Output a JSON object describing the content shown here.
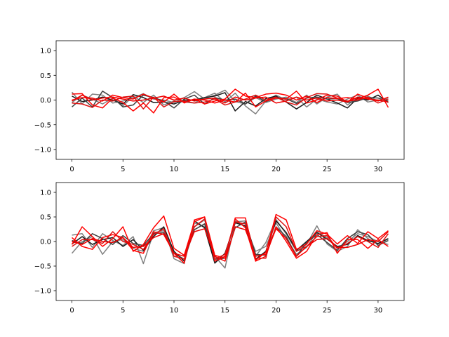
{
  "chart_data": [
    {
      "type": "line",
      "x": [
        0,
        1,
        2,
        3,
        4,
        5,
        6,
        7,
        8,
        9,
        10,
        11,
        12,
        13,
        14,
        15,
        16,
        17,
        18,
        19,
        20,
        21,
        22,
        23,
        24,
        25,
        26,
        27,
        28,
        29,
        30,
        31
      ],
      "xticks": [
        0,
        5,
        10,
        15,
        20,
        25,
        30
      ],
      "yticks": [
        -1.0,
        -0.5,
        0.0,
        0.5,
        1.0
      ],
      "xlim": [
        -1.55,
        32.55
      ],
      "ylim": [
        -1.2,
        1.2
      ],
      "series": [
        {
          "color": "#808080",
          "values": [
            0.16,
            -0.08,
            0.12,
            0.1,
            -0.06,
            -0.02,
            0.04,
            0.13,
            0.02,
            0.0,
            -0.05,
            0.05,
            0.17,
            0.02,
            0.1,
            0.2,
            -0.03,
            -0.08,
            0.05,
            -0.05,
            0.02,
            0.06,
            -0.05,
            0.1,
            -0.08,
            0.06,
            0.12,
            -0.1,
            0.05,
            0.08,
            -0.02,
            0.05
          ]
        },
        {
          "color": "#808080",
          "values": [
            -0.05,
            0.1,
            0.02,
            -0.08,
            0.04,
            -0.12,
            0.08,
            -0.05,
            0.1,
            -0.1,
            -0.02,
            -0.04,
            -0.06,
            0.05,
            0.14,
            -0.04,
            0.14,
            -0.12,
            -0.28,
            -0.02,
            0.1,
            0.0,
            0.06,
            -0.14,
            0.02,
            -0.04,
            -0.08,
            0.02,
            0.1,
            -0.04,
            0.0,
            0.02
          ]
        },
        {
          "color": "#1a1a1a",
          "values": [
            0.08,
            -0.03,
            0.0,
            0.06,
            0.0,
            -0.08,
            0.11,
            0.05,
            -0.05,
            -0.04,
            -0.08,
            0.0,
            0.0,
            0.05,
            0.08,
            0.15,
            -0.22,
            -0.03,
            -0.12,
            0.03,
            0.08,
            -0.04,
            -0.18,
            -0.05,
            0.1,
            0.02,
            -0.06,
            -0.16,
            0.04,
            0.0,
            0.1,
            -0.05
          ]
        },
        {
          "color": "#404040",
          "values": [
            -0.14,
            0.04,
            -0.14,
            0.18,
            0.05,
            -0.14,
            -0.1,
            0.1,
            0.05,
            -0.02,
            -0.16,
            0.02,
            0.1,
            -0.08,
            0.05,
            0.0,
            0.02,
            -0.08,
            0.08,
            -0.03,
            0.05,
            0.03,
            -0.07,
            0.04,
            0.06,
            0.02,
            0.03,
            -0.05,
            -0.02,
            0.05,
            0.04,
            -0.02
          ]
        },
        {
          "color": "#ff0000",
          "values": [
            0.12,
            0.13,
            -0.1,
            -0.16,
            0.04,
            -0.05,
            -0.22,
            -0.06,
            -0.26,
            0.05,
            0.06,
            -0.04,
            0.02,
            -0.08,
            -0.02,
            0.02,
            0.22,
            0.08,
            0.05,
            0.12,
            0.14,
            0.1,
            0.0,
            0.08,
            -0.05,
            0.05,
            0.03,
            0.05,
            0.02,
            0.1,
            0.22,
            -0.15
          ]
        },
        {
          "color": "#ff0000",
          "values": [
            0.0,
            0.05,
            0.04,
            -0.02,
            0.1,
            0.05,
            0.02,
            0.12,
            0.04,
            -0.04,
            0.12,
            -0.06,
            0.02,
            0.0,
            -0.06,
            0.0,
            -0.04,
            0.14,
            -0.14,
            -0.02,
            0.04,
            0.02,
            0.18,
            -0.06,
            0.0,
            0.1,
            0.08,
            -0.04,
            0.12,
            0.04,
            -0.02,
            0.06
          ]
        },
        {
          "color": "#dd1111",
          "values": [
            -0.06,
            -0.08,
            -0.15,
            0.0,
            -0.02,
            0.06,
            0.08,
            -0.18,
            0.06,
            -0.14,
            -0.03,
            -0.02,
            -0.06,
            -0.04,
            0.02,
            -0.1,
            -0.04,
            0.02,
            0.1,
            0.0,
            0.06,
            -0.04,
            -0.1,
            0.05,
            0.13,
            0.12,
            0.04,
            -0.02,
            0.0,
            0.06,
            -0.06,
            0.02
          ]
        },
        {
          "color": "#ee0000",
          "values": [
            -0.02,
            0.1,
            0.0,
            0.04,
            0.06,
            0.02,
            -0.02,
            0.0,
            0.04,
            0.08,
            0.0,
            0.04,
            -0.02,
            0.02,
            0.04,
            -0.06,
            0.06,
            0.0,
            0.04,
            0.06,
            -0.06,
            -0.02,
            0.06,
            0.0,
            0.04,
            -0.02,
            0.0,
            -0.04,
            0.06,
            0.02,
            0.0,
            -0.04
          ]
        }
      ]
    },
    {
      "type": "line",
      "x": [
        0,
        1,
        2,
        3,
        4,
        5,
        6,
        7,
        8,
        9,
        10,
        11,
        12,
        13,
        14,
        15,
        16,
        17,
        18,
        19,
        20,
        21,
        22,
        23,
        24,
        25,
        26,
        27,
        28,
        29,
        30,
        31
      ],
      "xticks": [
        0,
        5,
        10,
        15,
        20,
        25,
        30
      ],
      "yticks": [
        -1.0,
        -0.5,
        0.0,
        0.5,
        1.0
      ],
      "xlim": [
        -1.55,
        32.55
      ],
      "ylim": [
        -1.2,
        1.2
      ],
      "series": [
        {
          "color": "#808080",
          "values": [
            0.13,
            0.16,
            -0.12,
            0.16,
            0.02,
            -0.08,
            0.1,
            -0.45,
            0.18,
            0.22,
            -0.2,
            -0.4,
            0.3,
            0.44,
            -0.3,
            -0.54,
            0.4,
            0.42,
            -0.3,
            -0.02,
            0.45,
            0.15,
            -0.2,
            -0.06,
            0.32,
            -0.05,
            -0.2,
            -0.1,
            0.24,
            0.06,
            -0.05,
            0.05
          ]
        },
        {
          "color": "#808080",
          "values": [
            -0.24,
            0.0,
            0.1,
            -0.26,
            0.0,
            0.04,
            -0.14,
            -0.2,
            0.22,
            0.28,
            -0.35,
            -0.45,
            0.38,
            0.3,
            -0.42,
            -0.3,
            0.42,
            0.3,
            -0.2,
            -0.1,
            0.38,
            0.05,
            -0.26,
            -0.12,
            0.2,
            0.08,
            -0.14,
            0.0,
            0.16,
            0.1,
            0.0,
            -0.06
          ]
        },
        {
          "color": "#1a1a1a",
          "values": [
            -0.05,
            0.1,
            -0.06,
            0.04,
            0.08,
            -0.1,
            0.04,
            -0.18,
            0.1,
            0.3,
            -0.2,
            -0.4,
            0.42,
            0.28,
            -0.44,
            -0.24,
            0.38,
            0.32,
            -0.36,
            -0.2,
            0.42,
            0.18,
            -0.18,
            0.0,
            0.18,
            0.05,
            -0.1,
            -0.06,
            0.12,
            0.02,
            -0.04,
            0.06
          ]
        },
        {
          "color": "#404040",
          "values": [
            0.02,
            -0.04,
            0.16,
            0.06,
            -0.06,
            0.12,
            -0.04,
            -0.08,
            0.16,
            0.18,
            -0.24,
            -0.36,
            0.24,
            0.36,
            -0.36,
            -0.34,
            0.28,
            0.4,
            -0.26,
            -0.28,
            0.3,
            0.1,
            -0.3,
            -0.02,
            0.14,
            -0.02,
            -0.18,
            0.06,
            0.2,
            0.14,
            -0.08,
            0.02
          ]
        },
        {
          "color": "#ff0000",
          "values": [
            -0.06,
            0.3,
            0.1,
            -0.1,
            0.06,
            0.3,
            -0.2,
            -0.06,
            0.28,
            0.52,
            -0.14,
            -0.28,
            0.4,
            0.5,
            -0.28,
            -0.34,
            0.48,
            0.48,
            -0.38,
            -0.22,
            0.55,
            0.44,
            -0.16,
            -0.05,
            0.22,
            0.15,
            -0.05,
            0.12,
            -0.04,
            0.2,
            0.06,
            0.22
          ]
        },
        {
          "color": "#ff0000",
          "values": [
            0.08,
            -0.1,
            -0.16,
            0.08,
            0.14,
            0.08,
            -0.18,
            -0.24,
            0.2,
            0.14,
            -0.24,
            -0.44,
            0.44,
            0.5,
            -0.4,
            -0.3,
            0.46,
            0.28,
            -0.4,
            -0.3,
            0.3,
            0.0,
            -0.34,
            -0.2,
            0.14,
            0.18,
            -0.24,
            0.04,
            0.04,
            -0.14,
            0.04,
            -0.1
          ]
        },
        {
          "color": "#dd1111",
          "values": [
            -0.1,
            0.04,
            0.04,
            -0.04,
            0.2,
            0.0,
            -0.06,
            -0.16,
            0.14,
            0.26,
            -0.3,
            -0.36,
            0.3,
            0.46,
            -0.36,
            -0.26,
            0.4,
            0.36,
            -0.34,
            -0.34,
            0.5,
            0.3,
            -0.2,
            -0.1,
            0.1,
            0.12,
            -0.14,
            -0.04,
            0.1,
            0.0,
            -0.12,
            0.16
          ]
        },
        {
          "color": "#ee0000",
          "values": [
            0.0,
            -0.06,
            0.06,
            0.0,
            -0.02,
            0.08,
            -0.12,
            -0.1,
            0.08,
            0.16,
            -0.24,
            -0.3,
            0.2,
            0.26,
            -0.3,
            -0.4,
            0.3,
            0.24,
            -0.3,
            -0.26,
            0.26,
            0.06,
            -0.3,
            -0.1,
            0.04,
            0.06,
            -0.12,
            -0.12,
            -0.06,
            0.04,
            0.0,
            0.2
          ]
        }
      ]
    }
  ]
}
